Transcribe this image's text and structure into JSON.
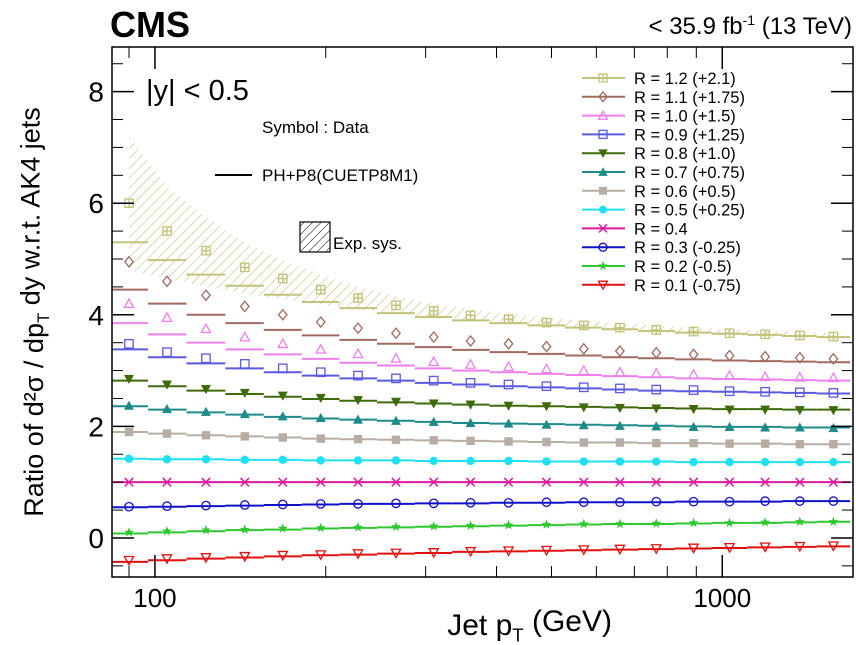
{
  "header": {
    "experiment": "CMS",
    "luminosity_prefix": "< 35.9 fb",
    "luminosity_exp": "-1",
    "energy": "(13 TeV)"
  },
  "annotations": {
    "rapidity": "|y| < 0.5",
    "symbol_note": "Symbol : Data",
    "theory_label": "PH+P8(CUETP8M1)",
    "sys_label": "Exp. sys."
  },
  "chart_data": {
    "type": "scatter",
    "title": "",
    "xlabel": "Jet p_T (GeV)",
    "ylabel": "Ratio of d²σ / dp_T dy w.r.t. AK4 jets",
    "xscale": "log",
    "xlim": [
      84,
      1700
    ],
    "ylim": [
      -0.7,
      8.8
    ],
    "xticks": [
      100,
      1000
    ],
    "yticks": [
      0,
      2,
      4,
      6,
      8
    ],
    "grid": false,
    "legend_position": "top-right",
    "x": [
      90,
      105,
      123,
      144,
      168,
      196,
      228,
      266,
      310,
      360,
      420,
      490,
      570,
      660,
      765,
      890,
      1030,
      1190,
      1370,
      1570
    ],
    "series": [
      {
        "name": "R = 1.2 (+2.1)",
        "offset": 2.1,
        "color": "#c2c27a",
        "marker": "square-cross",
        "values": [
          6.0,
          5.5,
          5.15,
          4.85,
          4.65,
          4.45,
          4.3,
          4.17,
          4.07,
          3.99,
          3.92,
          3.86,
          3.81,
          3.77,
          3.73,
          3.7,
          3.67,
          3.65,
          3.63,
          3.61
        ],
        "model": [
          5.3,
          4.98,
          4.72,
          4.52,
          4.36,
          4.23,
          4.12,
          4.03,
          3.96,
          3.9,
          3.85,
          3.81,
          3.77,
          3.74,
          3.71,
          3.68,
          3.66,
          3.64,
          3.62,
          3.6
        ],
        "sys_upper": [
          7.2,
          6.3,
          5.75,
          5.3,
          4.98,
          4.72,
          4.5,
          4.33,
          4.2,
          4.1,
          4.02,
          3.95,
          3.9,
          3.85,
          3.81,
          3.77,
          3.74,
          3.71,
          3.69,
          3.67
        ],
        "sys_lower": [
          4.8,
          4.65,
          4.5,
          4.38,
          4.28,
          4.18,
          4.1,
          4.02,
          3.96,
          3.9,
          3.84,
          3.8,
          3.76,
          3.72,
          3.69,
          3.66,
          3.63,
          3.61,
          3.59,
          3.57
        ]
      },
      {
        "name": "R = 1.1 (+1.75)",
        "offset": 1.75,
        "color": "#a06a5f",
        "marker": "diamond-open",
        "values": [
          4.95,
          4.6,
          4.35,
          4.15,
          4.0,
          3.87,
          3.76,
          3.67,
          3.6,
          3.53,
          3.48,
          3.43,
          3.39,
          3.35,
          3.32,
          3.29,
          3.27,
          3.25,
          3.23,
          3.21
        ],
        "model": [
          4.45,
          4.2,
          4.0,
          3.85,
          3.73,
          3.63,
          3.55,
          3.48,
          3.42,
          3.37,
          3.33,
          3.3,
          3.27,
          3.24,
          3.22,
          3.2,
          3.18,
          3.17,
          3.16,
          3.15
        ]
      },
      {
        "name": "R = 1.0 (+1.5)",
        "offset": 1.5,
        "color": "#ee80ee",
        "marker": "triangle-up-open",
        "values": [
          4.2,
          3.95,
          3.75,
          3.6,
          3.48,
          3.38,
          3.3,
          3.22,
          3.16,
          3.11,
          3.07,
          3.03,
          3.0,
          2.97,
          2.95,
          2.93,
          2.91,
          2.89,
          2.88,
          2.87
        ],
        "model": [
          3.85,
          3.65,
          3.5,
          3.38,
          3.29,
          3.21,
          3.14,
          3.09,
          3.04,
          3.0,
          2.97,
          2.94,
          2.92,
          2.9,
          2.88,
          2.86,
          2.85,
          2.84,
          2.83,
          2.82
        ]
      },
      {
        "name": "R = 0.9 (+1.25)",
        "offset": 1.25,
        "color": "#5a5ae0",
        "marker": "square-open",
        "values": [
          3.48,
          3.33,
          3.22,
          3.12,
          3.04,
          2.97,
          2.91,
          2.86,
          2.82,
          2.78,
          2.75,
          2.72,
          2.7,
          2.68,
          2.66,
          2.65,
          2.63,
          2.62,
          2.61,
          2.6
        ],
        "model": [
          3.38,
          3.24,
          3.13,
          3.04,
          2.97,
          2.91,
          2.86,
          2.82,
          2.78,
          2.75,
          2.72,
          2.7,
          2.68,
          2.66,
          2.64,
          2.63,
          2.62,
          2.61,
          2.6,
          2.59
        ]
      },
      {
        "name": "R = 0.8 (+1.0)",
        "offset": 1.0,
        "color": "#3f6a0a",
        "marker": "triangle-down-filled",
        "values": [
          2.85,
          2.75,
          2.67,
          2.6,
          2.55,
          2.51,
          2.47,
          2.44,
          2.41,
          2.39,
          2.37,
          2.36,
          2.34,
          2.33,
          2.32,
          2.31,
          2.3,
          2.3,
          2.29,
          2.29
        ],
        "model": [
          2.82,
          2.72,
          2.64,
          2.58,
          2.53,
          2.49,
          2.46,
          2.43,
          2.41,
          2.39,
          2.37,
          2.36,
          2.35,
          2.34,
          2.33,
          2.32,
          2.31,
          2.31,
          2.3,
          2.3
        ]
      },
      {
        "name": "R = 0.7 (+0.75)",
        "offset": 0.75,
        "color": "#1e8a8a",
        "marker": "triangle-up-filled",
        "values": [
          2.37,
          2.31,
          2.26,
          2.22,
          2.18,
          2.15,
          2.12,
          2.1,
          2.08,
          2.06,
          2.05,
          2.03,
          2.02,
          2.01,
          2.0,
          1.99,
          1.99,
          1.98,
          1.98,
          1.97
        ],
        "model": [
          2.36,
          2.3,
          2.25,
          2.21,
          2.17,
          2.14,
          2.12,
          2.1,
          2.08,
          2.06,
          2.05,
          2.04,
          2.03,
          2.02,
          2.01,
          2.0,
          1.99,
          1.99,
          1.98,
          1.98
        ]
      },
      {
        "name": "R = 0.6 (+0.5)",
        "offset": 0.5,
        "color": "#b8ada3",
        "marker": "square-filled",
        "values": [
          1.9,
          1.87,
          1.84,
          1.82,
          1.8,
          1.78,
          1.77,
          1.76,
          1.75,
          1.74,
          1.73,
          1.72,
          1.71,
          1.71,
          1.7,
          1.7,
          1.69,
          1.69,
          1.68,
          1.68
        ],
        "model": [
          1.9,
          1.87,
          1.84,
          1.82,
          1.8,
          1.78,
          1.77,
          1.76,
          1.75,
          1.74,
          1.73,
          1.72,
          1.71,
          1.71,
          1.7,
          1.7,
          1.69,
          1.69,
          1.68,
          1.68
        ]
      },
      {
        "name": "R = 0.5 (+0.25)",
        "offset": 0.25,
        "color": "#1ee0f0",
        "marker": "circle-filled",
        "values": [
          1.42,
          1.41,
          1.41,
          1.4,
          1.4,
          1.39,
          1.39,
          1.39,
          1.38,
          1.38,
          1.38,
          1.37,
          1.37,
          1.37,
          1.37,
          1.36,
          1.36,
          1.36,
          1.36,
          1.36
        ],
        "model": [
          1.42,
          1.41,
          1.41,
          1.4,
          1.4,
          1.39,
          1.39,
          1.39,
          1.38,
          1.38,
          1.38,
          1.37,
          1.37,
          1.37,
          1.37,
          1.36,
          1.36,
          1.36,
          1.36,
          1.36
        ]
      },
      {
        "name": "R = 0.4",
        "offset": 0,
        "color": "#e0179f",
        "marker": "cross",
        "values": [
          1.0,
          1.0,
          1.0,
          1.0,
          1.0,
          1.0,
          1.0,
          1.0,
          1.0,
          1.0,
          1.0,
          1.0,
          1.0,
          1.0,
          1.0,
          1.0,
          1.0,
          1.0,
          1.0,
          1.0
        ],
        "model": [
          1.0,
          1.0,
          1.0,
          1.0,
          1.0,
          1.0,
          1.0,
          1.0,
          1.0,
          1.0,
          1.0,
          1.0,
          1.0,
          1.0,
          1.0,
          1.0,
          1.0,
          1.0,
          1.0,
          1.0
        ]
      },
      {
        "name": "R = 0.3 (-0.25)",
        "offset": -0.25,
        "color": "#1010c8",
        "marker": "circle-open",
        "values": [
          0.56,
          0.57,
          0.58,
          0.59,
          0.6,
          0.61,
          0.61,
          0.62,
          0.62,
          0.63,
          0.63,
          0.64,
          0.64,
          0.64,
          0.65,
          0.65,
          0.65,
          0.66,
          0.66,
          0.66
        ],
        "model": [
          0.55,
          0.56,
          0.57,
          0.58,
          0.59,
          0.6,
          0.61,
          0.61,
          0.62,
          0.62,
          0.63,
          0.63,
          0.64,
          0.64,
          0.64,
          0.65,
          0.65,
          0.65,
          0.66,
          0.66
        ]
      },
      {
        "name": "R = 0.2 (-0.5)",
        "offset": -0.5,
        "color": "#2ec82e",
        "marker": "star",
        "values": [
          0.1,
          0.12,
          0.14,
          0.15,
          0.17,
          0.18,
          0.19,
          0.2,
          0.21,
          0.22,
          0.23,
          0.24,
          0.25,
          0.25,
          0.26,
          0.27,
          0.27,
          0.28,
          0.29,
          0.29
        ],
        "model": [
          0.08,
          0.1,
          0.12,
          0.14,
          0.15,
          0.17,
          0.18,
          0.19,
          0.2,
          0.21,
          0.22,
          0.23,
          0.24,
          0.25,
          0.25,
          0.26,
          0.27,
          0.27,
          0.28,
          0.29
        ]
      },
      {
        "name": "R = 0.1 (-0.75)",
        "offset": -0.75,
        "color": "#e01010",
        "marker": "triangle-down-open",
        "values": [
          -0.4,
          -0.37,
          -0.35,
          -0.33,
          -0.31,
          -0.3,
          -0.28,
          -0.27,
          -0.26,
          -0.24,
          -0.23,
          -0.22,
          -0.21,
          -0.2,
          -0.19,
          -0.18,
          -0.17,
          -0.16,
          -0.15,
          -0.14
        ],
        "model": [
          -0.43,
          -0.4,
          -0.37,
          -0.35,
          -0.33,
          -0.31,
          -0.3,
          -0.28,
          -0.27,
          -0.25,
          -0.24,
          -0.23,
          -0.22,
          -0.21,
          -0.2,
          -0.19,
          -0.18,
          -0.17,
          -0.16,
          -0.15
        ]
      }
    ]
  }
}
